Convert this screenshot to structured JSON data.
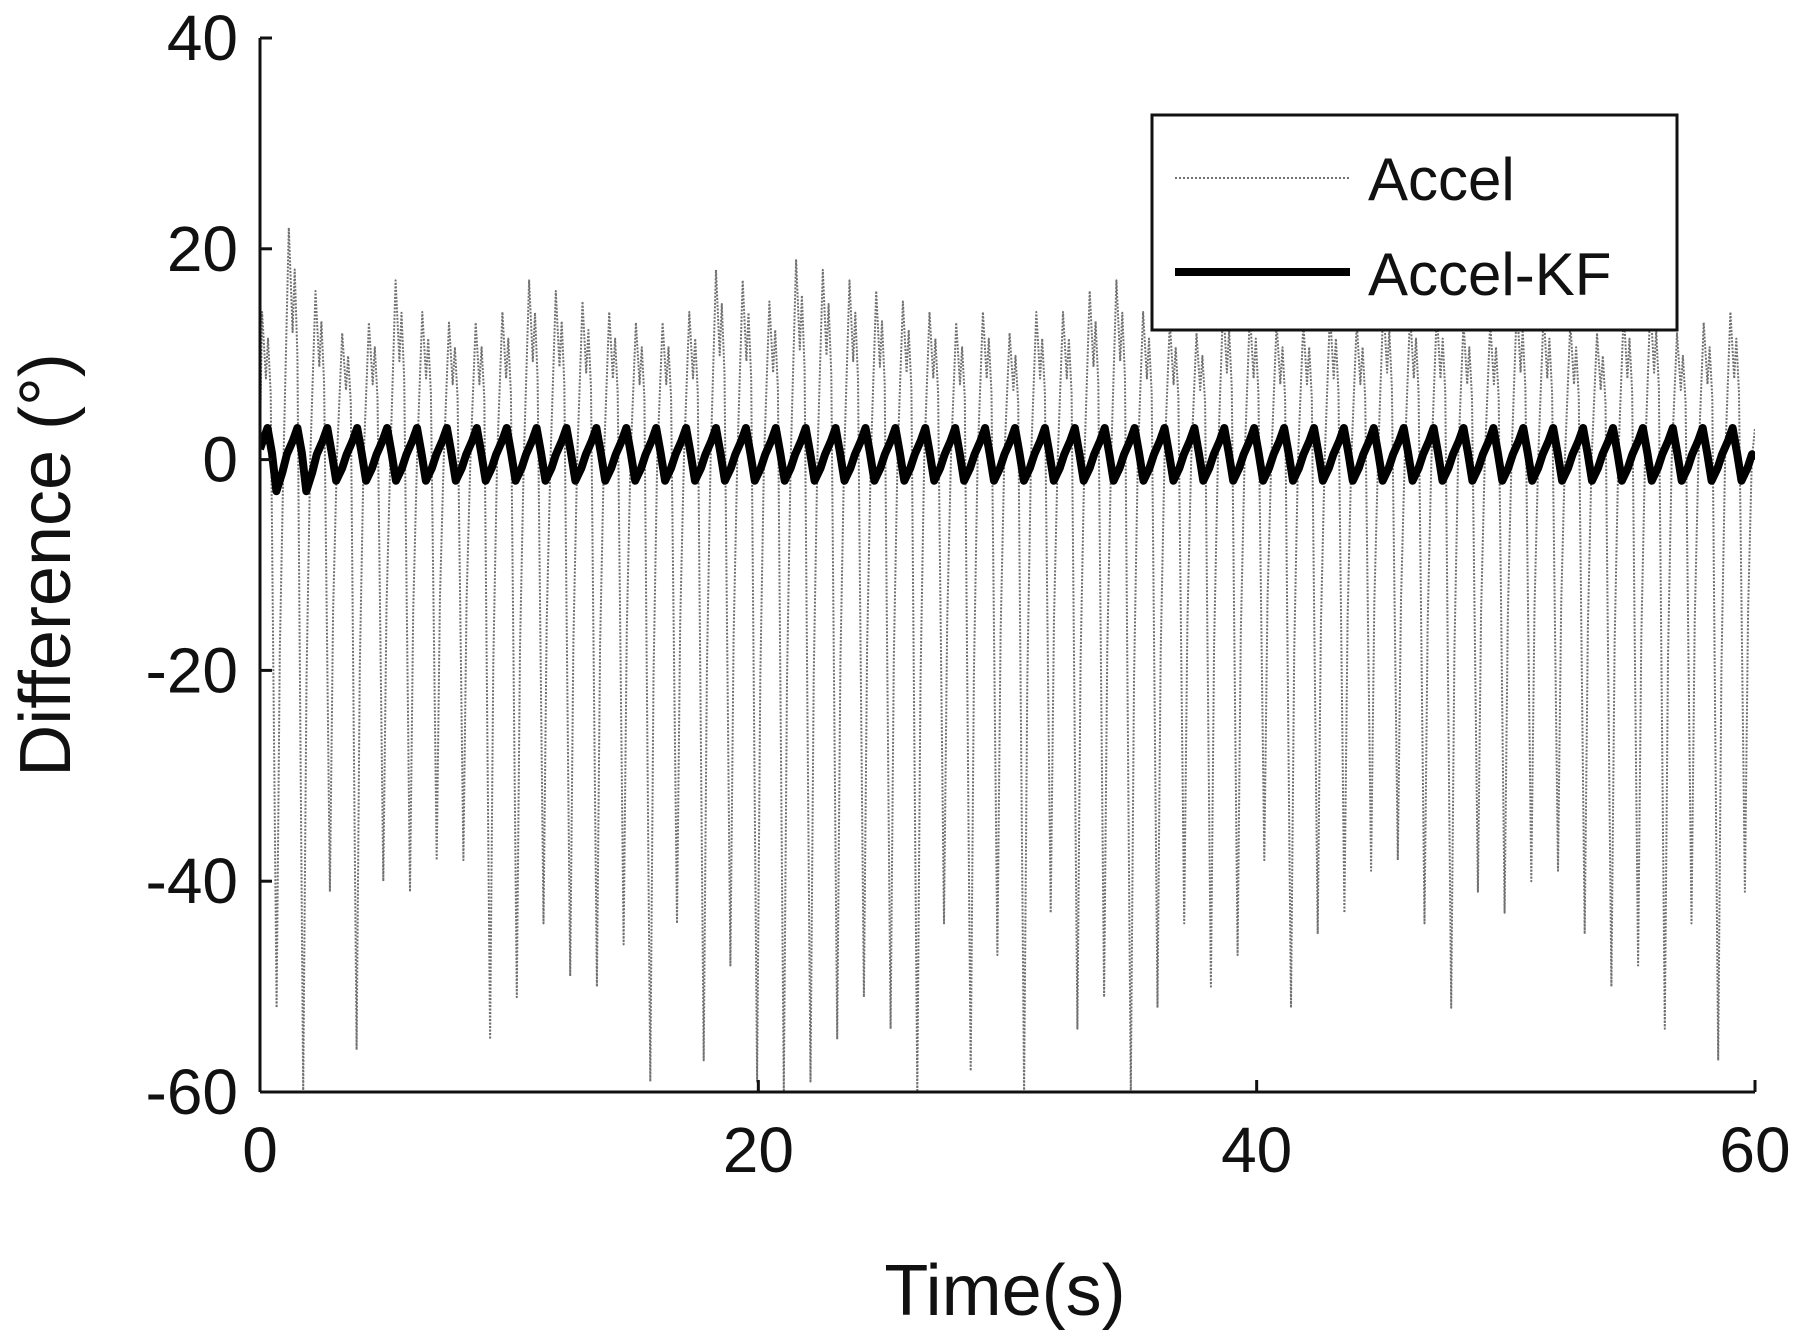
{
  "chart_data": {
    "type": "line",
    "title": "",
    "xlabel": "Time(s)",
    "ylabel": "Difference (°)",
    "xlim": [
      0,
      60
    ],
    "ylim": [
      -60,
      40
    ],
    "xticks": [
      0,
      20,
      40,
      60
    ],
    "yticks": [
      40,
      20,
      0,
      -20,
      -40,
      -60
    ],
    "xtick_labels": [
      "0",
      "20",
      "40",
      "60"
    ],
    "ytick_labels": [
      "40",
      "20",
      "0",
      "-20",
      "-40",
      "-60"
    ],
    "grid": false,
    "legend": {
      "position": "top-right",
      "entries": [
        "Accel",
        "Accel-KF"
      ]
    },
    "series": [
      {
        "name": "Accel",
        "color": "#707070",
        "style": "thin dotted",
        "cycle_period_s": 1.2,
        "peaks": [
          14,
          22,
          16,
          12,
          13,
          17,
          14,
          13,
          13,
          14,
          17,
          16,
          15,
          14,
          13,
          13,
          14,
          18,
          17,
          15,
          19,
          18,
          17,
          16,
          15,
          14,
          13,
          14,
          12,
          14,
          14,
          16,
          17,
          14,
          13,
          12,
          15,
          14,
          13,
          13,
          14,
          13,
          15,
          14,
          14,
          13,
          13,
          15,
          14,
          13,
          12,
          14,
          15,
          12,
          13,
          14
        ],
        "troughs": [
          -52,
          -60,
          -41,
          -56,
          -40,
          -41,
          -38,
          -38,
          -55,
          -51,
          -44,
          -49,
          -50,
          -46,
          -59,
          -44,
          -57,
          -48,
          -59,
          -60,
          -59,
          -55,
          -51,
          -54,
          -60,
          -44,
          -58,
          -47,
          -60,
          -43,
          -54,
          -51,
          -60,
          -52,
          -44,
          -50,
          -47,
          -38,
          -52,
          -45,
          -43,
          -39,
          -38,
          -44,
          -52,
          -41,
          -43,
          -40,
          -39,
          -45,
          -50,
          -48,
          -54,
          -44,
          -57,
          -41
        ]
      },
      {
        "name": "Accel-KF",
        "color": "#000000",
        "style": "thick solid",
        "cycle_period_s": 1.2,
        "peaks": [
          3,
          3,
          3,
          3,
          3,
          3,
          3,
          3,
          3,
          3,
          3,
          3,
          3,
          3,
          3,
          3,
          3,
          3,
          3,
          3,
          3,
          3,
          3,
          3,
          3,
          3,
          3,
          3,
          3,
          3,
          3,
          3,
          3,
          3,
          3,
          3,
          3,
          3,
          3,
          3,
          3,
          3,
          3,
          3,
          3,
          3,
          3,
          3,
          3,
          3
        ],
        "troughs": [
          -3,
          -3,
          -2,
          -2,
          -2,
          -2,
          -2,
          -2,
          -2,
          -2,
          -2,
          -2,
          -2,
          -2,
          -2,
          -2,
          -2,
          -2,
          -2,
          -2,
          -2,
          -2,
          -2,
          -2,
          -2,
          -2,
          -2,
          -2,
          -2,
          -2,
          -2,
          -2,
          -2,
          -2,
          -2,
          -2,
          -2,
          -2,
          -2,
          -2,
          -2,
          -2,
          -2,
          -2,
          -2,
          -2,
          -2,
          -2,
          -2,
          -2
        ]
      }
    ]
  }
}
